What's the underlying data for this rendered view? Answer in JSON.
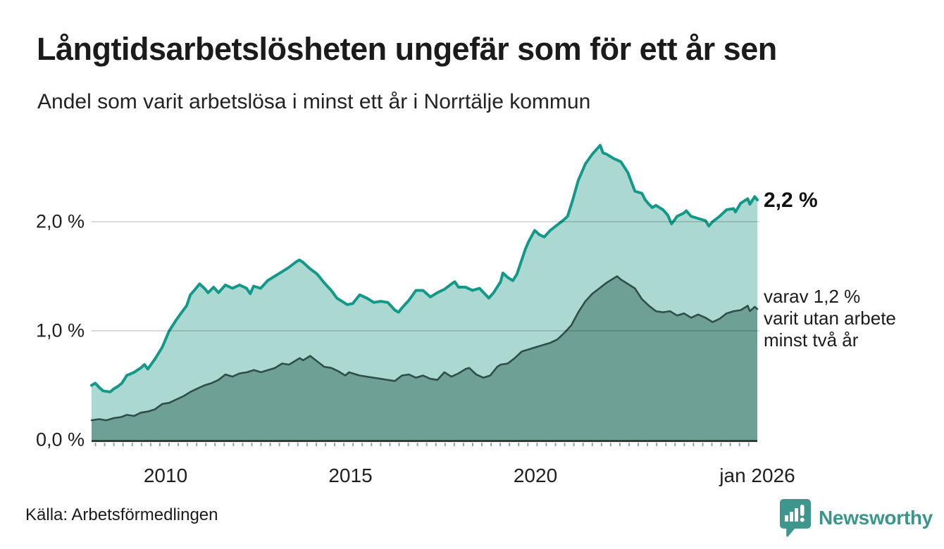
{
  "header": {
    "title": "Långtidsarbetslösheten ungefär som för ett år sen",
    "subtitle": "Andel som varit arbetslösa i minst ett år i Norrtälje kommun"
  },
  "annotations": {
    "latest_value": "2,2 %",
    "secondary": [
      "varav 1,2 %",
      "varit utan arbete",
      "minst två år"
    ]
  },
  "footer": {
    "source": "Källa: Arbetsförmedlingen",
    "branding_name": "Newsworthy"
  },
  "colors": {
    "line_1yr": "#149889",
    "fill_1yr": "#abd9d1",
    "line_2yr": "#2e4f49",
    "fill_2yr": "#6fa096",
    "gridline": "rgba(0,0,0,0.14)",
    "axis": "#333b3b",
    "tick": "#95a7a2",
    "text": "#1b1b1b",
    "brand": "#3a958b"
  },
  "chart_data": {
    "type": "area",
    "title": "Långtidsarbetslösheten ungefär som för ett år sen",
    "subtitle": "Andel som varit arbetslösa i minst ett år i Norrtälje kommun",
    "unit": "%",
    "grid": true,
    "legend_position": "annotated-right",
    "x_axis": {
      "range": [
        2008.0,
        2026.0
      ],
      "ticks": [
        {
          "label": "2010",
          "year": 2010.0
        },
        {
          "label": "2015",
          "year": 2015.0
        },
        {
          "label": "2020",
          "year": 2020.0
        },
        {
          "label": "jan 2026",
          "year": 2026.0
        }
      ]
    },
    "y_axis": {
      "range": [
        0,
        2.8
      ],
      "ticks": [
        {
          "label": "0,0 %",
          "value": 0.0
        },
        {
          "label": "1,0 %",
          "value": 1.0
        },
        {
          "label": "2,0 %",
          "value": 2.0
        }
      ]
    },
    "series": [
      {
        "name": "arbetslösa minst ett år",
        "latest_label": "2,2 %",
        "latest_value": 2.2,
        "points": [
          [
            2008.0,
            0.5
          ],
          [
            2008.1,
            0.52
          ],
          [
            2008.21,
            0.48
          ],
          [
            2008.31,
            0.45
          ],
          [
            2008.5,
            0.44
          ],
          [
            2008.61,
            0.47
          ],
          [
            2008.71,
            0.49
          ],
          [
            2008.82,
            0.52
          ],
          [
            2008.95,
            0.59
          ],
          [
            2009.15,
            0.62
          ],
          [
            2009.33,
            0.66
          ],
          [
            2009.43,
            0.69
          ],
          [
            2009.52,
            0.65
          ],
          [
            2009.71,
            0.74
          ],
          [
            2009.91,
            0.85
          ],
          [
            2010.1,
            1.0
          ],
          [
            2010.29,
            1.1
          ],
          [
            2010.48,
            1.19
          ],
          [
            2010.57,
            1.23
          ],
          [
            2010.67,
            1.33
          ],
          [
            2010.8,
            1.38
          ],
          [
            2010.92,
            1.43
          ],
          [
            2011.05,
            1.39
          ],
          [
            2011.15,
            1.35
          ],
          [
            2011.3,
            1.4
          ],
          [
            2011.43,
            1.35
          ],
          [
            2011.62,
            1.42
          ],
          [
            2011.81,
            1.39
          ],
          [
            2012.0,
            1.42
          ],
          [
            2012.19,
            1.39
          ],
          [
            2012.29,
            1.34
          ],
          [
            2012.38,
            1.41
          ],
          [
            2012.57,
            1.39
          ],
          [
            2012.76,
            1.46
          ],
          [
            2012.95,
            1.5
          ],
          [
            2013.14,
            1.54
          ],
          [
            2013.33,
            1.58
          ],
          [
            2013.52,
            1.63
          ],
          [
            2013.62,
            1.65
          ],
          [
            2013.71,
            1.63
          ],
          [
            2013.9,
            1.57
          ],
          [
            2014.1,
            1.52
          ],
          [
            2014.29,
            1.44
          ],
          [
            2014.48,
            1.37
          ],
          [
            2014.63,
            1.3
          ],
          [
            2014.77,
            1.27
          ],
          [
            2014.91,
            1.24
          ],
          [
            2015.06,
            1.25
          ],
          [
            2015.25,
            1.33
          ],
          [
            2015.44,
            1.3
          ],
          [
            2015.63,
            1.26
          ],
          [
            2015.82,
            1.27
          ],
          [
            2016.01,
            1.26
          ],
          [
            2016.2,
            1.19
          ],
          [
            2016.3,
            1.17
          ],
          [
            2016.39,
            1.21
          ],
          [
            2016.58,
            1.28
          ],
          [
            2016.77,
            1.37
          ],
          [
            2016.96,
            1.37
          ],
          [
            2017.16,
            1.31
          ],
          [
            2017.35,
            1.35
          ],
          [
            2017.54,
            1.38
          ],
          [
            2017.73,
            1.43
          ],
          [
            2017.82,
            1.45
          ],
          [
            2017.92,
            1.4
          ],
          [
            2018.11,
            1.4
          ],
          [
            2018.3,
            1.37
          ],
          [
            2018.49,
            1.39
          ],
          [
            2018.74,
            1.3
          ],
          [
            2018.87,
            1.35
          ],
          [
            2019.06,
            1.45
          ],
          [
            2019.12,
            1.53
          ],
          [
            2019.25,
            1.49
          ],
          [
            2019.39,
            1.46
          ],
          [
            2019.5,
            1.52
          ],
          [
            2019.63,
            1.65
          ],
          [
            2019.73,
            1.75
          ],
          [
            2019.82,
            1.82
          ],
          [
            2019.98,
            1.92
          ],
          [
            2020.11,
            1.88
          ],
          [
            2020.24,
            1.86
          ],
          [
            2020.4,
            1.92
          ],
          [
            2020.59,
            1.97
          ],
          [
            2020.74,
            2.01
          ],
          [
            2020.87,
            2.05
          ],
          [
            2021.01,
            2.2
          ],
          [
            2021.16,
            2.38
          ],
          [
            2021.35,
            2.53
          ],
          [
            2021.54,
            2.62
          ],
          [
            2021.75,
            2.7
          ],
          [
            2021.83,
            2.63
          ],
          [
            2021.92,
            2.62
          ],
          [
            2022.11,
            2.58
          ],
          [
            2022.31,
            2.55
          ],
          [
            2022.5,
            2.45
          ],
          [
            2022.69,
            2.28
          ],
          [
            2022.88,
            2.26
          ],
          [
            2022.97,
            2.2
          ],
          [
            2023.07,
            2.16
          ],
          [
            2023.16,
            2.13
          ],
          [
            2023.26,
            2.15
          ],
          [
            2023.45,
            2.11
          ],
          [
            2023.58,
            2.06
          ],
          [
            2023.68,
            1.98
          ],
          [
            2023.77,
            2.02
          ],
          [
            2023.83,
            2.05
          ],
          [
            2024.02,
            2.08
          ],
          [
            2024.08,
            2.1
          ],
          [
            2024.21,
            2.05
          ],
          [
            2024.4,
            2.03
          ],
          [
            2024.6,
            2.01
          ],
          [
            2024.69,
            1.96
          ],
          [
            2024.79,
            2.0
          ],
          [
            2024.98,
            2.05
          ],
          [
            2025.17,
            2.11
          ],
          [
            2025.36,
            2.12
          ],
          [
            2025.41,
            2.09
          ],
          [
            2025.55,
            2.17
          ],
          [
            2025.74,
            2.21
          ],
          [
            2025.8,
            2.16
          ],
          [
            2025.93,
            2.23
          ],
          [
            2026.0,
            2.2
          ]
        ]
      },
      {
        "name": "varit utan arbete minst två år",
        "latest_label": "varav 1,2 %",
        "latest_value": 1.2,
        "points": [
          [
            2008.0,
            0.18
          ],
          [
            2008.2,
            0.19
          ],
          [
            2008.4,
            0.18
          ],
          [
            2008.6,
            0.2
          ],
          [
            2008.8,
            0.21
          ],
          [
            2008.95,
            0.23
          ],
          [
            2009.15,
            0.22
          ],
          [
            2009.33,
            0.25
          ],
          [
            2009.52,
            0.26
          ],
          [
            2009.71,
            0.28
          ],
          [
            2009.91,
            0.33
          ],
          [
            2010.1,
            0.34
          ],
          [
            2010.29,
            0.37
          ],
          [
            2010.48,
            0.4
          ],
          [
            2010.67,
            0.44
          ],
          [
            2010.86,
            0.47
          ],
          [
            2011.05,
            0.5
          ],
          [
            2011.24,
            0.52
          ],
          [
            2011.43,
            0.55
          ],
          [
            2011.62,
            0.6
          ],
          [
            2011.81,
            0.58
          ],
          [
            2012.0,
            0.61
          ],
          [
            2012.2,
            0.62
          ],
          [
            2012.39,
            0.64
          ],
          [
            2012.58,
            0.62
          ],
          [
            2012.77,
            0.64
          ],
          [
            2012.96,
            0.66
          ],
          [
            2013.15,
            0.7
          ],
          [
            2013.34,
            0.69
          ],
          [
            2013.53,
            0.73
          ],
          [
            2013.63,
            0.75
          ],
          [
            2013.72,
            0.73
          ],
          [
            2013.91,
            0.77
          ],
          [
            2014.1,
            0.72
          ],
          [
            2014.29,
            0.67
          ],
          [
            2014.48,
            0.66
          ],
          [
            2014.67,
            0.63
          ],
          [
            2014.86,
            0.59
          ],
          [
            2014.96,
            0.62
          ],
          [
            2015.06,
            0.61
          ],
          [
            2015.25,
            0.59
          ],
          [
            2015.44,
            0.58
          ],
          [
            2015.63,
            0.57
          ],
          [
            2015.82,
            0.56
          ],
          [
            2016.01,
            0.55
          ],
          [
            2016.2,
            0.54
          ],
          [
            2016.39,
            0.59
          ],
          [
            2016.58,
            0.6
          ],
          [
            2016.77,
            0.57
          ],
          [
            2016.96,
            0.59
          ],
          [
            2017.16,
            0.56
          ],
          [
            2017.35,
            0.55
          ],
          [
            2017.54,
            0.62
          ],
          [
            2017.73,
            0.58
          ],
          [
            2017.92,
            0.61
          ],
          [
            2018.11,
            0.65
          ],
          [
            2018.21,
            0.66
          ],
          [
            2018.4,
            0.6
          ],
          [
            2018.59,
            0.57
          ],
          [
            2018.78,
            0.59
          ],
          [
            2018.97,
            0.67
          ],
          [
            2019.06,
            0.69
          ],
          [
            2019.25,
            0.7
          ],
          [
            2019.44,
            0.75
          ],
          [
            2019.63,
            0.81
          ],
          [
            2019.82,
            0.83
          ],
          [
            2020.01,
            0.85
          ],
          [
            2020.21,
            0.87
          ],
          [
            2020.4,
            0.89
          ],
          [
            2020.59,
            0.92
          ],
          [
            2020.78,
            0.98
          ],
          [
            2020.97,
            1.05
          ],
          [
            2021.16,
            1.17
          ],
          [
            2021.35,
            1.27
          ],
          [
            2021.54,
            1.34
          ],
          [
            2021.73,
            1.39
          ],
          [
            2021.92,
            1.44
          ],
          [
            2022.11,
            1.48
          ],
          [
            2022.21,
            1.5
          ],
          [
            2022.31,
            1.47
          ],
          [
            2022.5,
            1.43
          ],
          [
            2022.69,
            1.39
          ],
          [
            2022.88,
            1.29
          ],
          [
            2023.07,
            1.23
          ],
          [
            2023.26,
            1.18
          ],
          [
            2023.45,
            1.17
          ],
          [
            2023.64,
            1.18
          ],
          [
            2023.83,
            1.14
          ],
          [
            2024.02,
            1.16
          ],
          [
            2024.21,
            1.12
          ],
          [
            2024.4,
            1.15
          ],
          [
            2024.6,
            1.12
          ],
          [
            2024.79,
            1.08
          ],
          [
            2024.98,
            1.11
          ],
          [
            2025.17,
            1.16
          ],
          [
            2025.36,
            1.18
          ],
          [
            2025.55,
            1.19
          ],
          [
            2025.74,
            1.23
          ],
          [
            2025.8,
            1.18
          ],
          [
            2025.93,
            1.22
          ],
          [
            2026.0,
            1.2
          ]
        ]
      }
    ]
  }
}
